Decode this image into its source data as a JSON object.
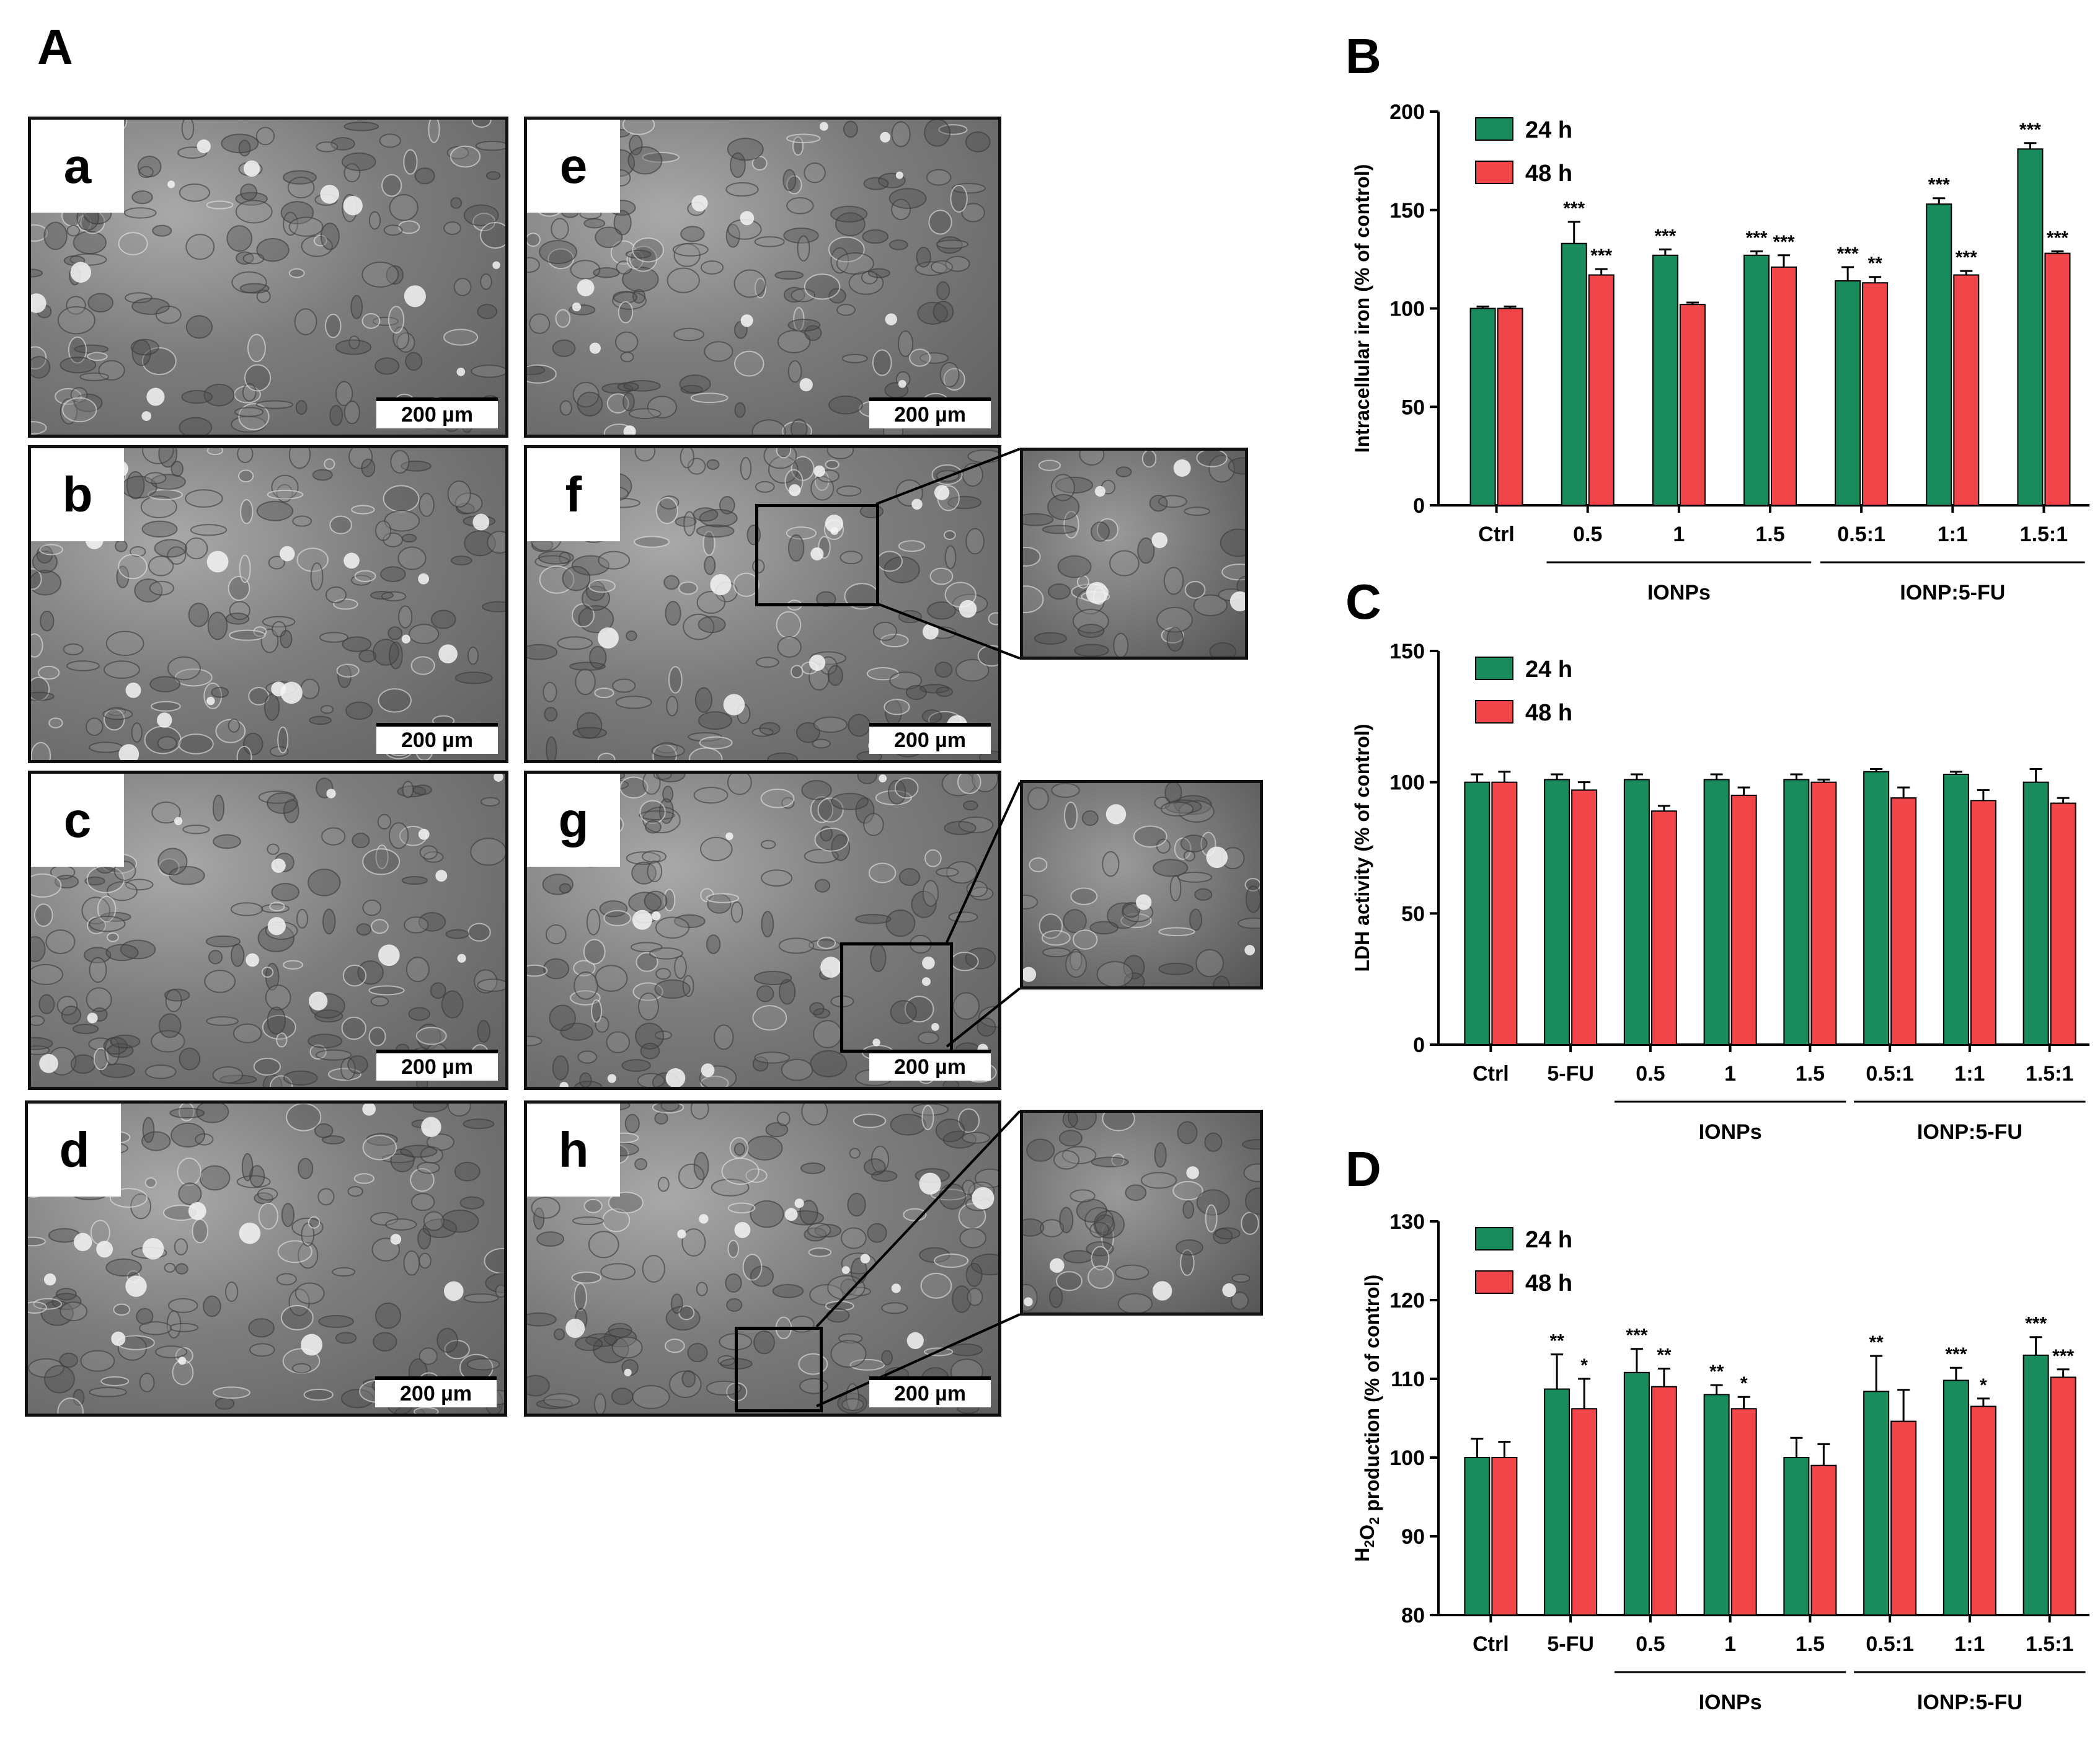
{
  "figure": {
    "panel_A_label": "A",
    "micrographs": [
      {
        "label": "a",
        "scale": "200 µm"
      },
      {
        "label": "b",
        "scale": "200 µm"
      },
      {
        "label": "c",
        "scale": "200 µm"
      },
      {
        "label": "d",
        "scale": "200 µm"
      },
      {
        "label": "e",
        "scale": "200 µm"
      },
      {
        "label": "f",
        "scale": "200 µm"
      },
      {
        "label": "g",
        "scale": "200 µm"
      },
      {
        "label": "h",
        "scale": "200 µm"
      }
    ],
    "colors": {
      "h24": "#1a8b5c",
      "h48": "#f0464a"
    }
  },
  "chart_data": [
    {
      "panel": "B",
      "type": "bar",
      "ylabel": "Intracellular iron (% of control)",
      "ylim": [
        0,
        200
      ],
      "yticks": [
        0,
        50,
        100,
        150,
        200
      ],
      "categories": [
        "Ctrl",
        "0.5",
        "1",
        "1.5",
        "0.5:1",
        "1:1",
        "1.5:1"
      ],
      "groups": [
        {
          "label": "IONPs",
          "from": 1,
          "to": 3
        },
        {
          "label": "IONP:5-FU",
          "from": 4,
          "to": 6
        }
      ],
      "legend": [
        "24 h",
        "48 h"
      ],
      "legend_position": "top-left",
      "series": [
        {
          "name": "24 h",
          "values": [
            100,
            133,
            127,
            127,
            114,
            153,
            181
          ],
          "errors": [
            1,
            11,
            3,
            2,
            7,
            3,
            3
          ],
          "sig": [
            "",
            "***",
            "***",
            "***",
            "***",
            "***",
            "***"
          ]
        },
        {
          "name": "48 h",
          "values": [
            100,
            117,
            102,
            121,
            113,
            117,
            128
          ],
          "errors": [
            1,
            3,
            1,
            6,
            3,
            2,
            1
          ],
          "sig": [
            "",
            "***",
            "",
            "***",
            "**",
            "***",
            "***"
          ]
        }
      ]
    },
    {
      "panel": "C",
      "type": "bar",
      "ylabel": "LDH activity (% of control)",
      "ylim": [
        0,
        150
      ],
      "yticks": [
        0,
        50,
        100,
        150
      ],
      "categories": [
        "Ctrl",
        "5-FU",
        "0.5",
        "1",
        "1.5",
        "0.5:1",
        "1:1",
        "1.5:1"
      ],
      "groups": [
        {
          "label": "IONPs",
          "from": 2,
          "to": 4
        },
        {
          "label": "IONP:5-FU",
          "from": 5,
          "to": 7
        }
      ],
      "legend": [
        "24 h",
        "48 h"
      ],
      "legend_position": "top-left",
      "series": [
        {
          "name": "24 h",
          "values": [
            100,
            101,
            101,
            101,
            101,
            104,
            103,
            100
          ],
          "errors": [
            3,
            2,
            2,
            2,
            2,
            1,
            1,
            5
          ],
          "sig": [
            "",
            "",
            "",
            "",
            "",
            "",
            "",
            ""
          ]
        },
        {
          "name": "48 h",
          "values": [
            100,
            97,
            89,
            95,
            100,
            94,
            93,
            92
          ],
          "errors": [
            4,
            3,
            2,
            3,
            1,
            4,
            4,
            2
          ],
          "sig": [
            "",
            "",
            "",
            "",
            "",
            "",
            "",
            ""
          ]
        }
      ]
    },
    {
      "panel": "D",
      "type": "bar",
      "ylabel_main": "H",
      "ylabel_sub": "2",
      "ylabel_mid": "O",
      "ylabel_sub2": "2",
      "ylabel_rest": " production (% of control)",
      "ylim": [
        80,
        130
      ],
      "yticks": [
        80,
        90,
        100,
        110,
        120,
        130
      ],
      "categories": [
        "Ctrl",
        "5-FU",
        "0.5",
        "1",
        "1.5",
        "0.5:1",
        "1:1",
        "1.5:1"
      ],
      "groups": [
        {
          "label": "IONPs",
          "from": 2,
          "to": 4
        },
        {
          "label": "IONP:5-FU",
          "from": 5,
          "to": 7
        }
      ],
      "legend": [
        "24 h",
        "48 h"
      ],
      "legend_position": "top-left",
      "series": [
        {
          "name": "24 h",
          "values": [
            100,
            108.7,
            110.8,
            108,
            100,
            108.4,
            109.8,
            113
          ],
          "errors": [
            2.4,
            4.4,
            3,
            1.2,
            2.5,
            4.5,
            1.6,
            2.3
          ],
          "sig": [
            "",
            "**",
            "***",
            "**",
            "",
            "**",
            "***",
            "***"
          ]
        },
        {
          "name": "48 h",
          "values": [
            100,
            106.2,
            109,
            106.2,
            99,
            104.6,
            106.5,
            110.2
          ],
          "errors": [
            2,
            3.8,
            2.3,
            1.5,
            2.7,
            4,
            1,
            1
          ],
          "sig": [
            "",
            "*",
            "**",
            "*",
            "",
            "",
            "*",
            "***"
          ]
        }
      ]
    }
  ]
}
